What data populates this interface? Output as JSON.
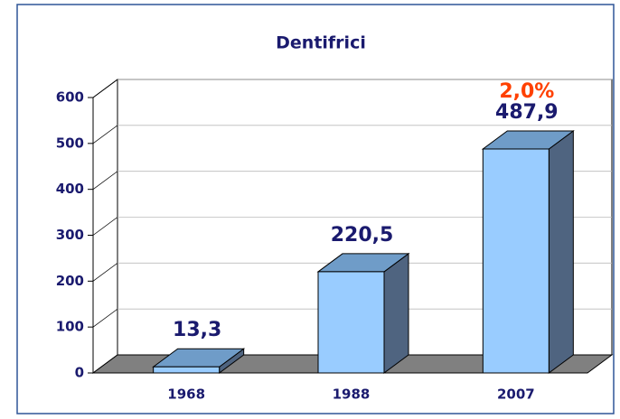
{
  "chart_data": {
    "type": "bar3d",
    "title": "Dentifrici",
    "categories": [
      "1968",
      "1988",
      "2007"
    ],
    "values": [
      13.3,
      220.5,
      487.9
    ],
    "value_labels": [
      "13,3",
      "220,5",
      "487,9"
    ],
    "annotation": "2,0%",
    "color": "#99ccff",
    "ylim": [
      0,
      600
    ],
    "yticks": [
      0,
      100,
      200,
      300,
      400,
      500,
      600
    ],
    "grid": true
  }
}
